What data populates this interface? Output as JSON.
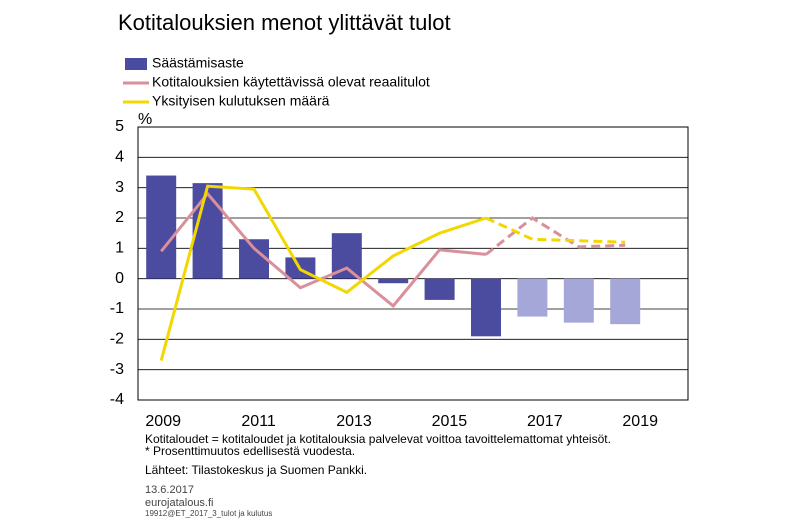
{
  "chart_data": {
    "type": "bar_line",
    "title": "Kotitalouksien menot ylittävät tulot",
    "y_label": "%",
    "categories": [
      "2009",
      null,
      "2011",
      null,
      "2013",
      null,
      "2015",
      null,
      "2017",
      null,
      "2019"
    ],
    "series": [
      {
        "name": "Säästämisaste",
        "kind": "bar",
        "color": "#4b4ba0",
        "colors": [
          "#4b4ba0",
          "#4b4ba0",
          "#4b4ba0",
          "#4b4ba0",
          "#4b4ba0",
          "#4b4ba0",
          "#4b4ba0",
          "#4b4ba0",
          "#a4a7d8",
          "#a4a7d8",
          "#a4a7d8"
        ],
        "values": [
          3.4,
          3.15,
          1.3,
          0.7,
          1.5,
          -0.15,
          -0.7,
          -1.9,
          -1.25,
          -1.45,
          -1.5
        ]
      },
      {
        "name": "Kotitalouksien käytettävissä olevat reaalitulot",
        "kind": "line",
        "color": "#d9909a",
        "line_styles": [
          "solid",
          "solid",
          "solid",
          "solid",
          "solid",
          "solid",
          "solid",
          "solid",
          "dashed",
          "dashed",
          "dashed"
        ],
        "values": [
          0.9,
          2.8,
          1.0,
          -0.3,
          0.35,
          -0.9,
          0.95,
          0.8,
          2.0,
          1.05,
          1.1
        ]
      },
      {
        "name": "Yksityisen kulutuksen määrä",
        "kind": "line",
        "color": "#f2d700",
        "line_styles": [
          "solid",
          "solid",
          "solid",
          "solid",
          "solid",
          "solid",
          "solid",
          "solid",
          "dashed",
          "dashed",
          "dashed"
        ],
        "values": [
          -2.7,
          3.05,
          2.95,
          0.3,
          -0.45,
          0.75,
          1.5,
          2.0,
          1.3,
          1.25,
          1.2
        ]
      }
    ],
    "ylim": [
      -4,
      5
    ],
    "yticks": [
      -4,
      -3,
      -2,
      -1,
      0,
      1,
      2,
      3,
      4,
      5
    ],
    "grid": true,
    "notes": [
      "Kotitaloudet = kotitaloudet ja kotitalouksia palvelevat voittoa tavoittelemattomat yhteisöt.",
      "* Prosenttimuutos edellisestä vuodesta.",
      "Lähteet: Tilastokeskus ja Suomen Pankki."
    ],
    "date": "13.6.2017",
    "site": "eurojatalous.fi",
    "code": "19912@ET_2017_3_tulot ja kulutus"
  }
}
